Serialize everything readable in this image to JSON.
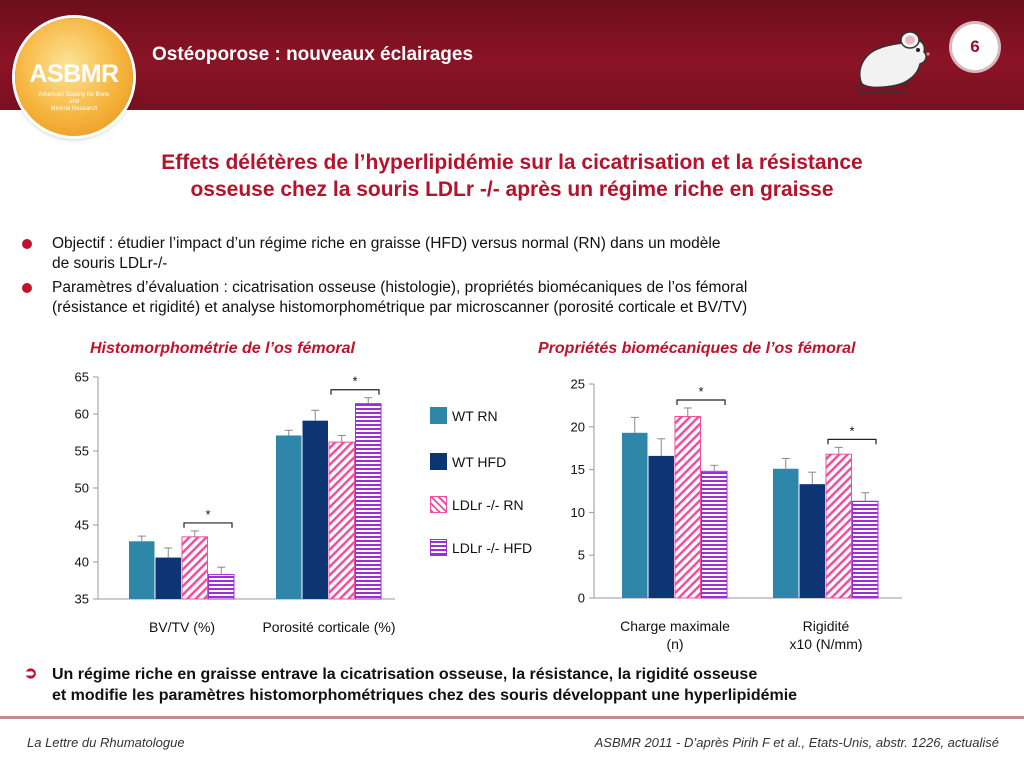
{
  "header": {
    "title": "Ostéoporose : nouveaux éclairages",
    "page_number": "6"
  },
  "logo": {
    "name": "ASBMR",
    "subtitle": [
      "American Society for Bone",
      "and",
      "Mineral Research"
    ]
  },
  "slide_title": [
    "Effets délétères de l’hyperlipidémie sur la cicatrisation et la résistance",
    "osseuse chez la souris LDLr -/- après un régime riche en graisse"
  ],
  "bullets": [
    [
      "Objectif : étudier l’impact d’un régime riche en graisse (HFD) versus normal (RN) dans un modèle",
      "de souris LDLr-/-"
    ],
    [
      "Paramètres d’évaluation : cicatrisation osseuse (histologie), propriétés biomécaniques de l’os fémoral",
      "(résistance et rigidité) et analyse histomorphométrique par microscanner (porosité corticale et BV/TV)"
    ]
  ],
  "legend": [
    "WT RN",
    "WT HFD",
    "LDLr -/- RN",
    "LDLr -/- HFD"
  ],
  "colors": {
    "wt_rn": "#2e86a8",
    "wt_hfd": "#0d3473",
    "ldlr_rn": "#f04fa0",
    "ldlr_hfd": "#9b2fd6",
    "accent": "#c0122b"
  },
  "chart_data": [
    {
      "type": "bar",
      "title": "Histomorphométrie de l’os fémoral",
      "categories": [
        "BV/TV (%)",
        "Porosité corticale (%)"
      ],
      "ylim": [
        35,
        65
      ],
      "yticks": [
        35,
        40,
        45,
        50,
        55,
        60,
        65
      ],
      "series": [
        {
          "name": "WT RN",
          "values": [
            42.8,
            57.1
          ],
          "errors": [
            0.7,
            0.7
          ]
        },
        {
          "name": "WT HFD",
          "values": [
            40.6,
            59.1
          ],
          "errors": [
            1.3,
            1.4
          ]
        },
        {
          "name": "LDLr -/- RN",
          "values": [
            43.4,
            56.2
          ],
          "errors": [
            0.8,
            0.9
          ]
        },
        {
          "name": "LDLr -/- HFD",
          "values": [
            38.3,
            61.4
          ],
          "errors": [
            1.0,
            0.8
          ]
        }
      ],
      "significance": [
        {
          "category": 0,
          "from": 2,
          "to": 3,
          "label": "*"
        },
        {
          "category": 1,
          "from": 2,
          "to": 3,
          "label": "*"
        }
      ]
    },
    {
      "type": "bar",
      "title": "Propriétés biomécaniques de l’os fémoral",
      "categories": [
        "Charge maximale (n)",
        "Rigidité x10 (N/mm)"
      ],
      "category_lines": [
        [
          "Charge maximale",
          "(n)"
        ],
        [
          "Rigidité",
          "x10 (N/mm)"
        ]
      ],
      "ylim": [
        0,
        25
      ],
      "yticks": [
        0,
        5,
        10,
        15,
        20,
        25
      ],
      "series": [
        {
          "name": "WT RN",
          "values": [
            19.3,
            15.1
          ],
          "errors": [
            1.8,
            1.2
          ]
        },
        {
          "name": "WT HFD",
          "values": [
            16.6,
            13.3
          ],
          "errors": [
            2.0,
            1.4
          ]
        },
        {
          "name": "LDLr -/- RN",
          "values": [
            21.2,
            16.8
          ],
          "errors": [
            1.0,
            0.8
          ]
        },
        {
          "name": "LDLr -/- HFD",
          "values": [
            14.8,
            11.3
          ],
          "errors": [
            0.7,
            1.0
          ]
        }
      ],
      "significance": [
        {
          "category": 0,
          "from": 2,
          "to": 3,
          "label": "*"
        },
        {
          "category": 1,
          "from": 2,
          "to": 3,
          "label": "*"
        }
      ]
    }
  ],
  "conclusion": [
    "Un régime riche en graisse entrave la cicatrisation osseuse, la résistance, la rigidité osseuse",
    "et modifie les paramètres histomorphométriques chez des souris développant une hyperlipidémie"
  ],
  "footer": {
    "left": "La Lettre du Rhumatologue",
    "right": "ASBMR 2011 - D’après Pirih F et al., Etats-Unis, abstr. 1226, actualisé"
  },
  "icons": {
    "mouse": "mouse-icon",
    "bullet": "bullet-dot-icon",
    "arrow": "arrow-right-icon"
  }
}
